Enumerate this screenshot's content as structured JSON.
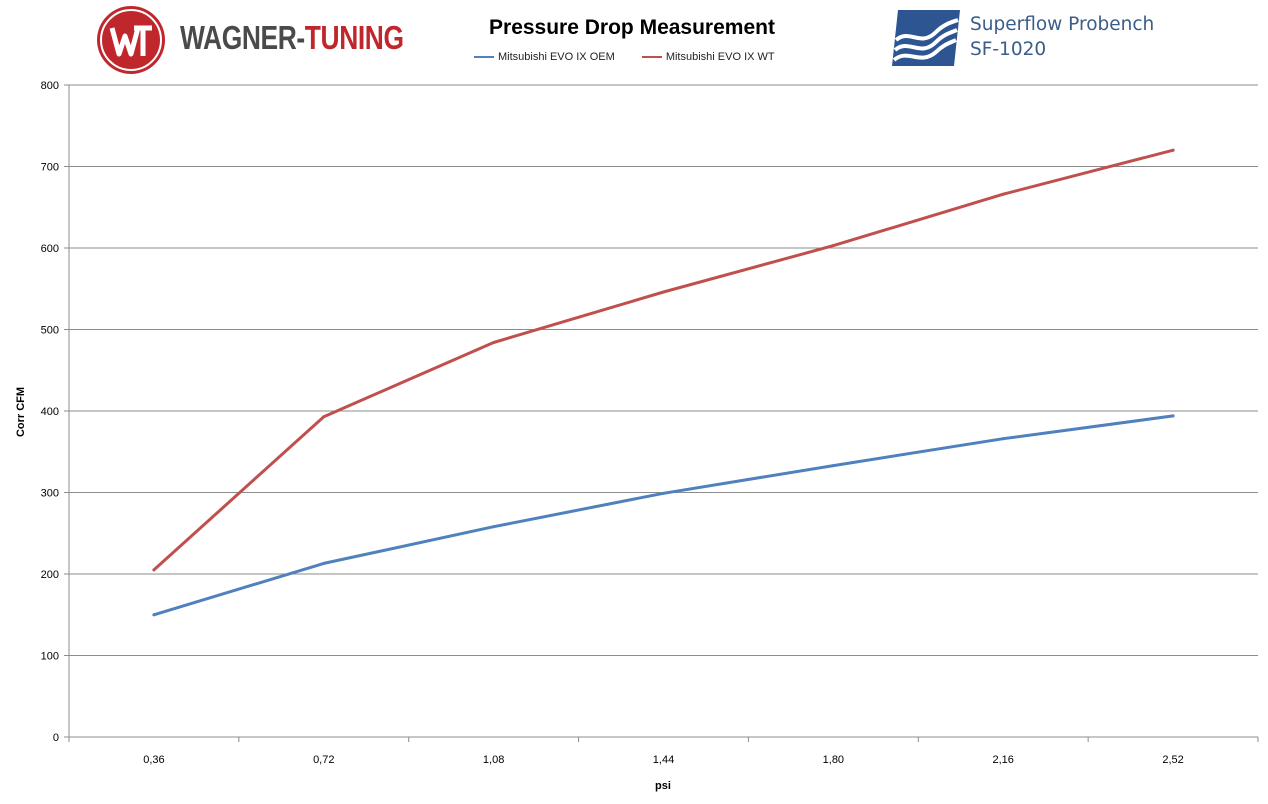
{
  "header": {
    "brand_left": "WAGNER-",
    "brand_right": "TUNING",
    "partner_line1": "Superflow Probench",
    "partner_line2": "SF-1020"
  },
  "colors": {
    "brand_red": "#c0272d",
    "partner_blue": "#2d5592"
  },
  "chart_data": {
    "type": "line",
    "title": "Pressure Drop Measurement",
    "xlabel": "psi",
    "ylabel": "Corr CFM",
    "categories": [
      "0,36",
      "0,72",
      "1,08",
      "1,44",
      "1,80",
      "2,16",
      "2,52"
    ],
    "ylim": [
      0,
      800
    ],
    "yticks": [
      "0",
      "100",
      "200",
      "300",
      "400",
      "500",
      "600",
      "700",
      "800"
    ],
    "grid": true,
    "legend_position": "top",
    "series": [
      {
        "name": "Mitsubishi EVO IX OEM",
        "color": "#4f81bd",
        "values": [
          150,
          213,
          258,
          299,
          333,
          366,
          394
        ]
      },
      {
        "name": "Mitsubishi EVO IX WT",
        "color": "#c0504d",
        "values": [
          205,
          393,
          484,
          546,
          603,
          666,
          720
        ]
      }
    ]
  }
}
